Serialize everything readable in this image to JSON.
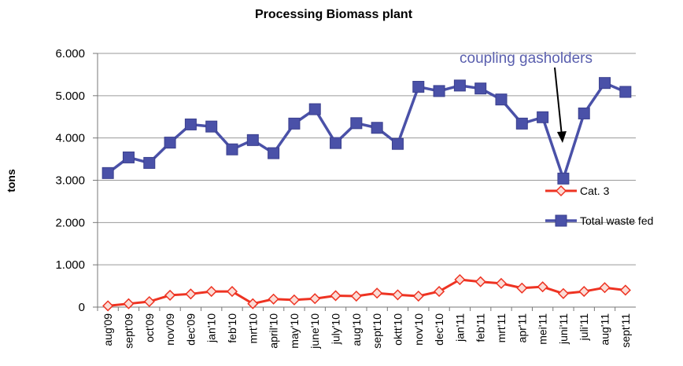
{
  "chart_data": {
    "type": "line",
    "title": "Processing Biomass plant",
    "ylabel": "tons",
    "xlabel": "",
    "ylim": [
      0,
      6000
    ],
    "yticks": [
      0,
      1000,
      2000,
      3000,
      4000,
      5000,
      6000
    ],
    "ytick_labels": [
      "0",
      "1.000",
      "2.000",
      "3.000",
      "4.000",
      "5.000",
      "6.000"
    ],
    "grid": "horizontal",
    "legend_position": "right",
    "categories": [
      "aug'09",
      "sept'09",
      "oct'09",
      "nov'09",
      "dec'09",
      "jan'10",
      "feb'10",
      "mrt'10",
      "april'10",
      "may'10",
      "june'10",
      "july'10",
      "aug'10",
      "sept'10",
      "oktt'10",
      "nov'10",
      "dec'10",
      "jan'11",
      "feb'11",
      "mrt'11",
      "apr'11",
      "mei'11",
      "juni'11",
      "juli'11",
      "aug'11",
      "sept'11"
    ],
    "series": [
      {
        "name": "Cat. 3",
        "color": "#ee3322",
        "marker": "diamond",
        "values": [
          30,
          80,
          130,
          280,
          310,
          370,
          370,
          80,
          190,
          170,
          200,
          270,
          260,
          330,
          290,
          260,
          370,
          650,
          600,
          560,
          450,
          480,
          320,
          370,
          460,
          400
        ]
      },
      {
        "name": "Total waste fed",
        "color": "#4a51a8",
        "marker": "square",
        "values": [
          3170,
          3540,
          3410,
          3890,
          4320,
          4270,
          3730,
          3950,
          3640,
          4340,
          4680,
          3880,
          4350,
          4240,
          3860,
          5210,
          5110,
          5240,
          5170,
          4910,
          4340,
          4490,
          3040,
          4580,
          5300,
          5090
        ]
      }
    ],
    "annotations": [
      {
        "text": "coupling gasholders",
        "color": "#5a5fae",
        "points_to": "juni'11"
      }
    ]
  }
}
